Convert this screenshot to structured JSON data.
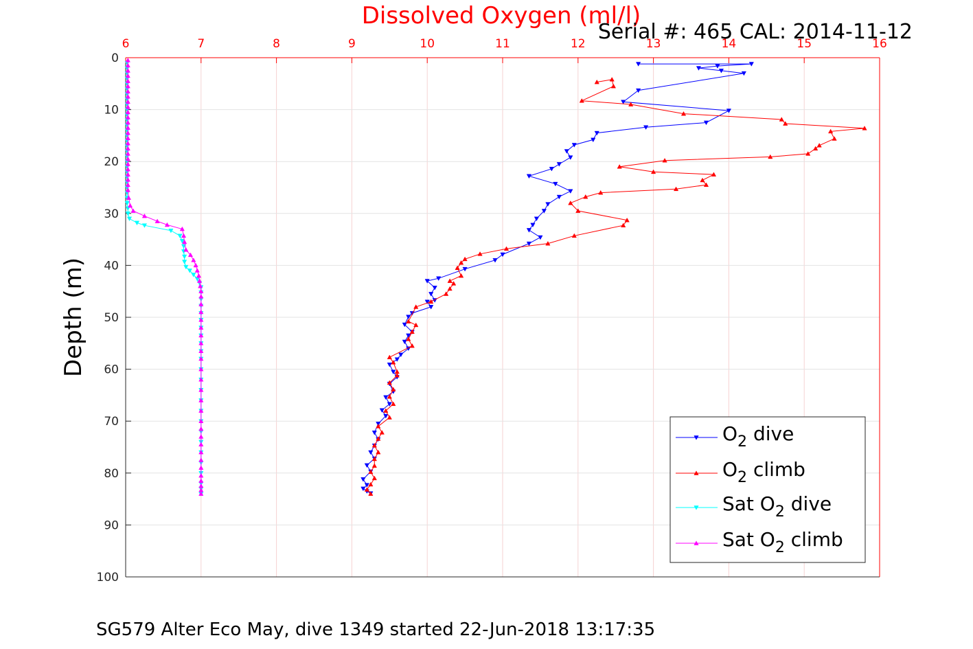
{
  "chart_data": {
    "type": "line",
    "title": "Dissolved Oxygen (ml/l)",
    "ylabel": "Depth (m)",
    "serial_text": "Serial #: 465  CAL: 2014-11-12",
    "footer_text": "SG579 Alter Eco May, dive 1349 started 22-Jun-2018 13:17:35",
    "xlim": [
      6,
      16
    ],
    "ylim": [
      0,
      100
    ],
    "y_reversed": true,
    "x_axis_location": "top",
    "grid": true,
    "legend_position": "bottom-right",
    "xticks": [
      "6",
      "7",
      "8",
      "9",
      "10",
      "11",
      "12",
      "13",
      "14",
      "15",
      "16"
    ],
    "yticks": [
      "0",
      "10",
      "20",
      "30",
      "40",
      "50",
      "60",
      "70",
      "80",
      "90",
      "100"
    ],
    "series": [
      {
        "name": "O2 dive",
        "legend_main": "O",
        "legend_sub": "2",
        "legend_rest": " dive",
        "color": "#0000ff",
        "marker": "down",
        "x": [
          12.8,
          14.3,
          13.85,
          13.6,
          13.9,
          14.2,
          12.8,
          12.6,
          14.0,
          13.7,
          12.9,
          12.25,
          12.2,
          11.95,
          11.85,
          11.9,
          11.75,
          11.65,
          11.35,
          11.7,
          11.9,
          11.75,
          11.6,
          11.55,
          11.45,
          11.4,
          11.35,
          11.5,
          11.35,
          11.0,
          10.9,
          10.5,
          10.15,
          10.0,
          10.1,
          10.05,
          10.1,
          10.0,
          10.05,
          9.8,
          9.75,
          9.7,
          9.8,
          9.75,
          9.7,
          9.75,
          9.65,
          9.6,
          9.5,
          9.55,
          9.6,
          9.5,
          9.55,
          9.45,
          9.5,
          9.4,
          9.45,
          9.35,
          9.3,
          9.35,
          9.3,
          9.25,
          9.3,
          9.2,
          9.25,
          9.15,
          9.2,
          9.15,
          9.2,
          9.25
        ],
        "y": [
          1.2,
          1.2,
          1.6,
          2.0,
          2.5,
          3.0,
          6.3,
          8.5,
          10.2,
          12.5,
          13.4,
          14.5,
          15.8,
          16.8,
          18.0,
          19.2,
          20.5,
          21.4,
          22.8,
          24.3,
          25.7,
          26.8,
          28.2,
          29.5,
          31.0,
          32.2,
          33.2,
          34.6,
          35.8,
          37.9,
          39.0,
          40.7,
          42.5,
          43.0,
          44.3,
          45.5,
          46.7,
          47.0,
          48.0,
          49.2,
          49.9,
          51.4,
          52.8,
          53.5,
          54.7,
          56.0,
          57.2,
          58.1,
          59.1,
          60.5,
          61.5,
          62.8,
          64.3,
          65.4,
          66.7,
          67.9,
          69.0,
          70.5,
          72.2,
          73.5,
          74.7,
          76.0,
          77.2,
          78.5,
          79.7,
          81.2,
          82.3,
          83.0,
          83.5,
          83.9
        ]
      },
      {
        "name": "O2 climb",
        "legend_main": "O",
        "legend_sub": "2",
        "legend_rest": " climb",
        "color": "#ff0000",
        "marker": "up",
        "x": [
          12.25,
          12.45,
          12.47,
          12.05,
          12.7,
          13.4,
          14.7,
          14.75,
          15.8,
          15.35,
          15.4,
          15.2,
          15.15,
          15.05,
          14.55,
          13.15,
          12.55,
          13.0,
          13.8,
          13.65,
          13.7,
          13.3,
          12.3,
          12.1,
          11.9,
          12.0,
          12.65,
          12.6,
          11.95,
          11.6,
          11.05,
          10.7,
          10.5,
          10.45,
          10.4,
          10.45,
          10.3,
          10.35,
          10.3,
          10.25,
          10.05,
          9.85,
          9.75,
          9.85,
          9.8,
          9.75,
          9.8,
          9.5,
          9.55,
          9.6,
          9.6,
          9.5,
          9.55,
          9.5,
          9.55,
          9.45,
          9.5,
          9.35,
          9.4,
          9.35,
          9.3,
          9.35,
          9.3,
          9.3,
          9.25,
          9.3,
          9.25,
          9.2,
          9.25
        ],
        "y": [
          4.7,
          4.2,
          5.5,
          8.3,
          9.0,
          10.8,
          11.9,
          12.7,
          13.6,
          14.2,
          15.6,
          16.9,
          17.5,
          18.5,
          19.1,
          19.8,
          21.0,
          22.0,
          22.5,
          23.6,
          24.5,
          25.3,
          26.0,
          26.8,
          28.0,
          29.5,
          31.3,
          32.3,
          34.3,
          35.8,
          36.8,
          37.8,
          38.8,
          39.5,
          40.5,
          42.0,
          43.0,
          43.5,
          44.5,
          45.5,
          47.0,
          48.0,
          50.8,
          51.5,
          52.8,
          54.2,
          55.5,
          57.7,
          58.7,
          60.5,
          61.2,
          62.6,
          63.9,
          65.3,
          66.7,
          68.0,
          69.3,
          71.0,
          72.2,
          73.4,
          74.7,
          76.0,
          77.3,
          78.6,
          79.8,
          81.0,
          82.2,
          83.2,
          84.0
        ]
      },
      {
        "name": "Sat O2 dive",
        "legend_main": "Sat O",
        "legend_sub": "2",
        "legend_rest": " dive",
        "color": "#00ffff",
        "marker": "down",
        "x": [
          6.02,
          6.02,
          6.02,
          6.02,
          6.02,
          6.02,
          6.02,
          6.02,
          6.02,
          6.02,
          6.02,
          6.02,
          6.02,
          6.02,
          6.02,
          6.02,
          6.02,
          6.02,
          6.02,
          6.02,
          6.02,
          6.02,
          6.02,
          6.02,
          6.02,
          6.02,
          6.02,
          6.02,
          6.03,
          6.03,
          6.05,
          6.15,
          6.25,
          6.6,
          6.72,
          6.75,
          6.77,
          6.77,
          6.78,
          6.78,
          6.8,
          6.85,
          6.9,
          6.95,
          6.98,
          7.0,
          7.0,
          7.0,
          7.0,
          7.0,
          7.0,
          7.0,
          7.0,
          7.0,
          7.0,
          7.0,
          7.0,
          7.0,
          7.0,
          7.0,
          7.0,
          7.0,
          7.0,
          7.0,
          7.0,
          7.0,
          7.0,
          7.0,
          7.0,
          7.0
        ],
        "y": [
          1.0,
          2.0,
          3.0,
          4.0,
          5.0,
          6.0,
          7.0,
          8.0,
          9.0,
          10.0,
          11.0,
          12.0,
          13.0,
          14.0,
          15.0,
          16.0,
          17.0,
          18.0,
          19.0,
          20.0,
          21.0,
          22.0,
          23.0,
          24.0,
          25.0,
          26.0,
          27.0,
          28.0,
          29.0,
          30.0,
          31.0,
          31.8,
          32.3,
          33.3,
          34.3,
          35.3,
          36.3,
          37.3,
          38.3,
          39.3,
          40.3,
          41.0,
          41.8,
          42.6,
          43.4,
          44.2,
          45.2,
          46.5,
          47.8,
          49.2,
          50.5,
          52.0,
          53.5,
          55.0,
          56.5,
          58.0,
          60.0,
          62.0,
          64.0,
          66.0,
          68.0,
          70.0,
          72.0,
          74.0,
          76.0,
          78.0,
          80.0,
          82.0,
          83.0,
          84.0
        ]
      },
      {
        "name": "Sat O2 climb",
        "legend_main": "Sat O",
        "legend_sub": "2",
        "legend_rest": " climb",
        "color": "#ff00ff",
        "marker": "up",
        "x": [
          6.03,
          6.03,
          6.03,
          6.03,
          6.03,
          6.03,
          6.03,
          6.03,
          6.03,
          6.03,
          6.03,
          6.03,
          6.03,
          6.03,
          6.03,
          6.03,
          6.03,
          6.03,
          6.03,
          6.03,
          6.03,
          6.03,
          6.03,
          6.03,
          6.03,
          6.03,
          6.04,
          6.06,
          6.1,
          6.25,
          6.42,
          6.55,
          6.75,
          6.77,
          6.78,
          6.8,
          6.86,
          6.9,
          6.93,
          6.95,
          6.97,
          6.98,
          6.99,
          7.0,
          7.0,
          7.0,
          7.0,
          7.0,
          7.0,
          7.0,
          7.0,
          7.0,
          7.0,
          7.0,
          7.0,
          7.0,
          7.0,
          7.0,
          7.0,
          7.0,
          7.0,
          7.0,
          7.0,
          7.0,
          7.0,
          7.0,
          7.0,
          7.0,
          7.0,
          7.0
        ],
        "y": [
          0.5,
          1.5,
          2.5,
          3.5,
          4.5,
          5.5,
          6.5,
          7.5,
          8.5,
          9.5,
          10.5,
          11.5,
          12.5,
          13.5,
          14.5,
          15.5,
          16.5,
          17.5,
          18.5,
          19.5,
          20.5,
          21.5,
          22.5,
          23.5,
          24.5,
          25.5,
          27.0,
          28.5,
          29.5,
          30.5,
          31.5,
          32.2,
          33.0,
          34.3,
          35.5,
          37.0,
          38.0,
          39.0,
          40.0,
          41.0,
          42.0,
          43.0,
          44.0,
          45.0,
          46.0,
          47.5,
          49.0,
          50.5,
          52.0,
          53.5,
          55.0,
          56.5,
          58.0,
          60.0,
          62.0,
          64.0,
          66.0,
          68.0,
          70.0,
          71.5,
          73.0,
          74.5,
          76.0,
          77.5,
          79.0,
          80.5,
          81.5,
          82.5,
          83.3,
          84.0
        ]
      }
    ]
  }
}
